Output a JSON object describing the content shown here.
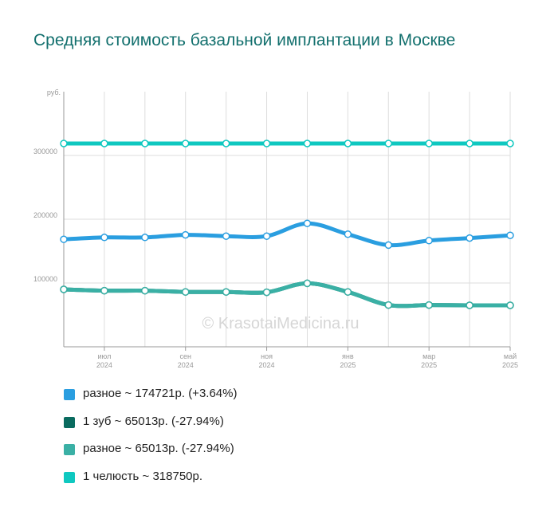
{
  "chart_data": {
    "type": "line",
    "title": "Средняя стоимость базальной имплантации в Москве",
    "ylabel": "руб.",
    "ylim": [
      0,
      400000
    ],
    "yticks": [
      {
        "value": 100000,
        "label": "100000"
      },
      {
        "value": 200000,
        "label": "200000"
      },
      {
        "value": 300000,
        "label": "300000"
      }
    ],
    "x_count": 12,
    "xticks": [
      {
        "index": 1,
        "month": "июл",
        "year": "2024"
      },
      {
        "index": 3,
        "month": "сен",
        "year": "2024"
      },
      {
        "index": 5,
        "month": "ноя",
        "year": "2024"
      },
      {
        "index": 7,
        "month": "янв",
        "year": "2025"
      },
      {
        "index": 9,
        "month": "мар",
        "year": "2025"
      },
      {
        "index": 11,
        "month": "май",
        "year": "2025"
      }
    ],
    "watermark": "© KrasotaiMedicina.ru",
    "series": [
      {
        "name": "разное",
        "color": "#2a9ee0",
        "values": [
          168500,
          171500,
          171500,
          175500,
          173500,
          173500,
          193500,
          176500,
          159500,
          166500,
          170500,
          174721
        ]
      },
      {
        "name": "1 зуб",
        "color": "#0a6b5f",
        "values": [
          90000,
          88000,
          88000,
          86000,
          86000,
          85500,
          99500,
          86000,
          65500,
          65500,
          65013,
          65013
        ]
      },
      {
        "name": "разное",
        "color": "#3ab0a5",
        "values": [
          90000,
          88000,
          88000,
          86000,
          86000,
          85500,
          99500,
          86000,
          65500,
          65500,
          65013,
          65013
        ]
      },
      {
        "name": "1 челюсть",
        "color": "#0fc8c0",
        "values": [
          318750,
          318750,
          318750,
          318750,
          318750,
          318750,
          318750,
          318750,
          318750,
          318750,
          318750,
          318750
        ]
      }
    ]
  },
  "legend": [
    {
      "text": "разное ~ 174721р. (+3.64%)",
      "color": "#2a9ee0"
    },
    {
      "text": "1 зуб ~ 65013р. (-27.94%)",
      "color": "#0a6b5f"
    },
    {
      "text": "разное ~ 65013р. (-27.94%)",
      "color": "#3ab0a5"
    },
    {
      "text": "1 челюсть ~ 318750р.",
      "color": "#0fc8c0"
    }
  ]
}
